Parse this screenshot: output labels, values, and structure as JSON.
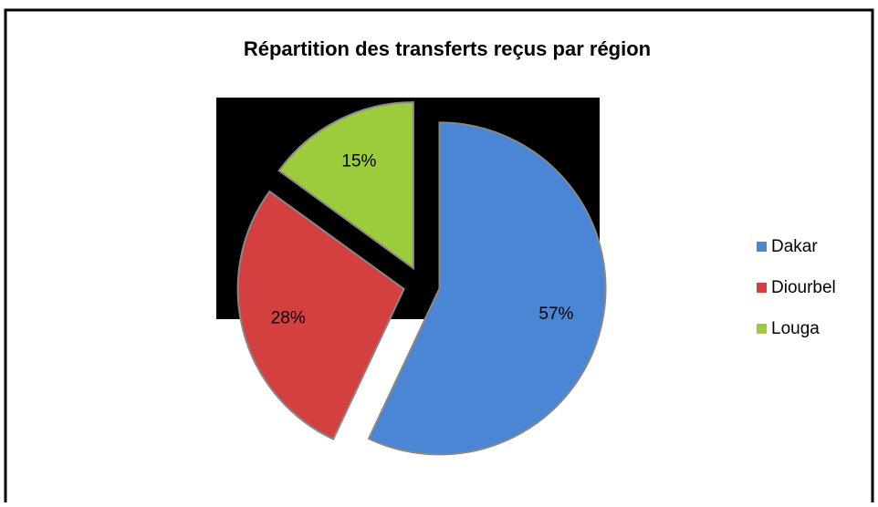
{
  "chart_data": {
    "type": "pie",
    "title": "Répartition des transferts reçus par région",
    "categories": [
      "Dakar",
      "Diourbel",
      "Louga"
    ],
    "values": [
      57,
      28,
      15
    ],
    "value_labels": [
      "57%",
      "28%",
      "15%"
    ],
    "colors": [
      "#4a86d4",
      "#d43f3f",
      "#9ccb3c"
    ],
    "legend": "right"
  }
}
